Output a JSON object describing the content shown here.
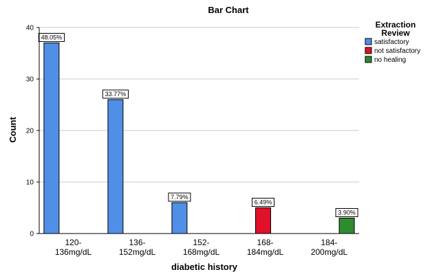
{
  "chart_data": {
    "type": "bar",
    "title": "Bar Chart",
    "xlabel": "diabetic history",
    "ylabel": "Count",
    "ylim": [
      0,
      40
    ],
    "yticks": [
      "0",
      "10",
      "20",
      "30",
      "40"
    ],
    "grid": true,
    "legend_position": "top-right",
    "categories": [
      [
        "120-",
        "136mg/dL"
      ],
      [
        "136-",
        "152mg/dL"
      ],
      [
        "152-",
        "168mg/dL"
      ],
      [
        "168-",
        "184mg/dL"
      ],
      [
        "184-",
        "200mg/dL"
      ]
    ],
    "legend": {
      "title": [
        "Extraction",
        "Review"
      ],
      "items": [
        {
          "name": "satisfactory",
          "color": "#4f8fe6"
        },
        {
          "name": "not satisfactory",
          "color": "#e0112b"
        },
        {
          "name": "no healing",
          "color": "#2e8b2e"
        }
      ]
    },
    "series": [
      {
        "name": "satisfactory",
        "color": "#4f8fe6",
        "values": [
          37,
          26,
          6,
          null,
          null
        ],
        "labels": [
          "48.05%",
          "33.77%",
          "7.79%",
          null,
          null
        ]
      },
      {
        "name": "not satisfactory",
        "color": "#e0112b",
        "values": [
          null,
          null,
          null,
          5,
          null
        ],
        "labels": [
          null,
          null,
          null,
          "6.49%",
          null
        ]
      },
      {
        "name": "no healing",
        "color": "#2e8b2e",
        "values": [
          null,
          null,
          null,
          null,
          3
        ],
        "labels": [
          null,
          null,
          null,
          null,
          "3.90%"
        ]
      }
    ]
  }
}
